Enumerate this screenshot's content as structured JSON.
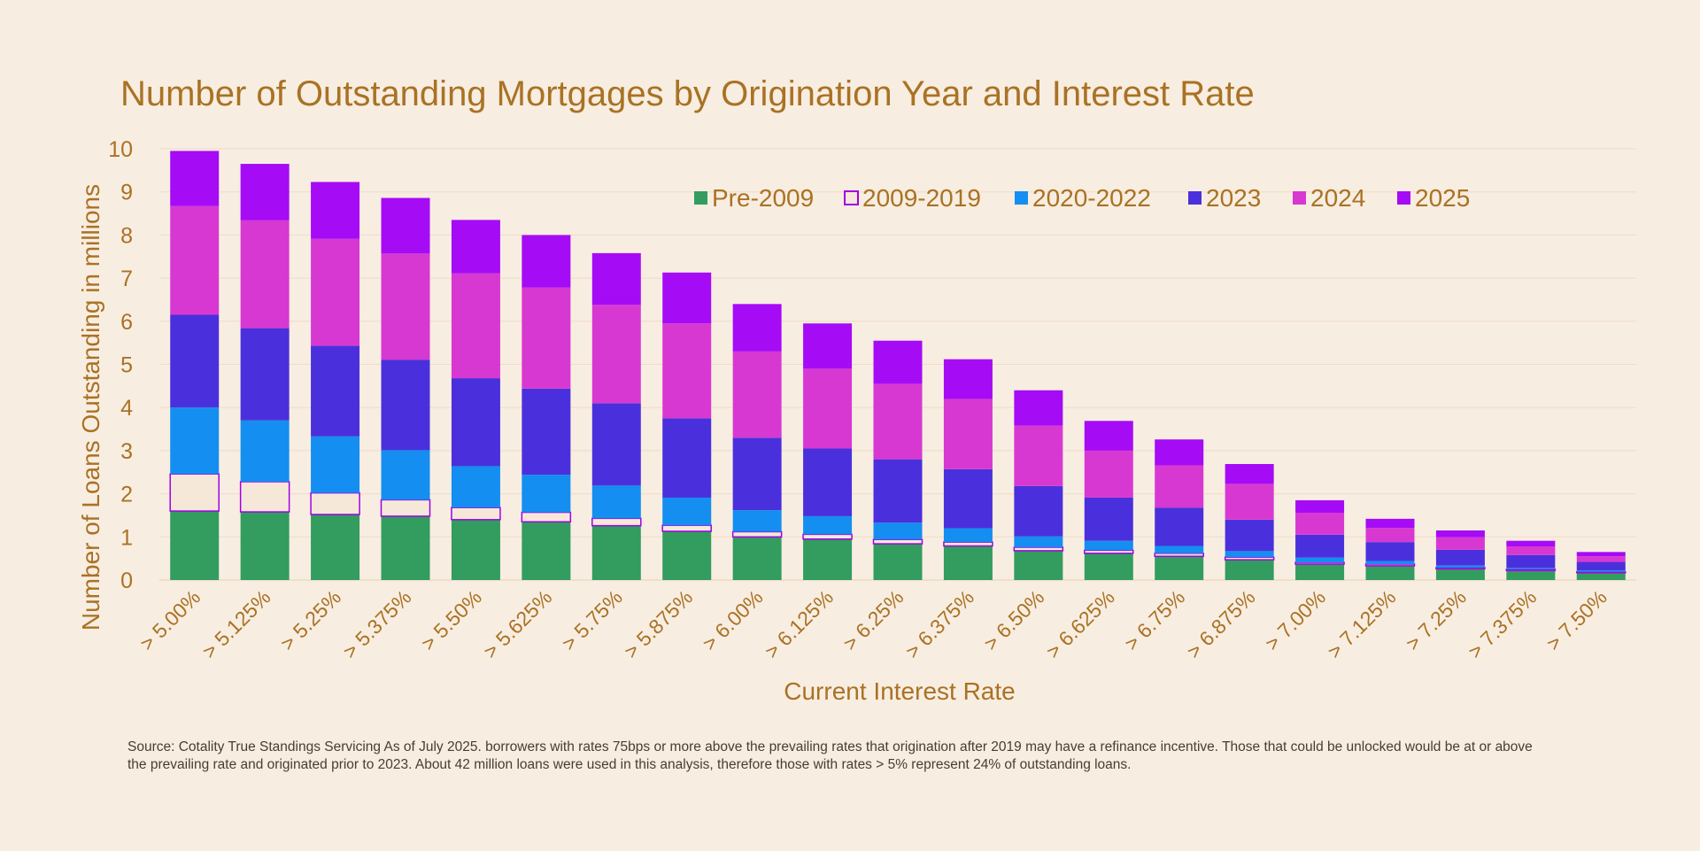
{
  "chart_data": {
    "type": "bar",
    "stacked": true,
    "title": "Number of Outstanding Mortgages by Origination Year and Interest Rate",
    "xlabel": "Current Interest Rate",
    "ylabel": "Number of Loans Outstanding in millions",
    "ylim": [
      0,
      10
    ],
    "yticks": [
      "0",
      "1",
      "2",
      "3",
      "4",
      "5",
      "6",
      "7",
      "8",
      "9",
      "10"
    ],
    "grid": true,
    "legend_position": "top-right",
    "categories": [
      "> 5.00%",
      "> 5.125%",
      "> 5.25%",
      "> 5.375%",
      "> 5.50%",
      "> 5.625%",
      "> 5.75%",
      "> 5.875%",
      "> 6.00%",
      "> 6.125%",
      "> 6.25%",
      "> 6.375%",
      "> 6.50%",
      "> 6.625%",
      "> 6.75%",
      "> 6.875%",
      "> 7.00%",
      "> 7.125%",
      "> 7.25%",
      "> 7.375%",
      "> 7.50%"
    ],
    "series": [
      {
        "name": "Pre-2009",
        "color": "#339c5f",
        "values": [
          1.6,
          1.58,
          1.52,
          1.48,
          1.4,
          1.35,
          1.26,
          1.13,
          1.0,
          0.95,
          0.84,
          0.79,
          0.68,
          0.62,
          0.55,
          0.47,
          0.37,
          0.33,
          0.26,
          0.22,
          0.17
        ]
      },
      {
        "name": "2009-2019",
        "color": "#f6e8d8",
        "outline": "#a100e6",
        "values": [
          0.86,
          0.7,
          0.5,
          0.38,
          0.28,
          0.22,
          0.17,
          0.14,
          0.12,
          0.11,
          0.1,
          0.09,
          0.08,
          0.07,
          0.07,
          0.06,
          0.04,
          0.04,
          0.03,
          0.03,
          0.02
        ]
      },
      {
        "name": "2020-2022",
        "color": "#148ef0",
        "values": [
          1.54,
          1.42,
          1.31,
          1.15,
          0.96,
          0.87,
          0.76,
          0.64,
          0.5,
          0.42,
          0.39,
          0.32,
          0.25,
          0.22,
          0.17,
          0.14,
          0.11,
          0.07,
          0.05,
          0.03,
          0.03
        ]
      },
      {
        "name": "2023",
        "color": "#4a30dc",
        "values": [
          2.15,
          2.14,
          2.1,
          2.1,
          2.04,
          2.0,
          1.91,
          1.84,
          1.68,
          1.57,
          1.47,
          1.37,
          1.17,
          1.0,
          0.89,
          0.73,
          0.53,
          0.44,
          0.36,
          0.3,
          0.2
        ]
      },
      {
        "name": "2024",
        "color": "#d838d2",
        "values": [
          2.52,
          2.5,
          2.48,
          2.46,
          2.43,
          2.34,
          2.28,
          2.2,
          2.0,
          1.85,
          1.75,
          1.63,
          1.4,
          1.09,
          0.98,
          0.83,
          0.51,
          0.33,
          0.29,
          0.2,
          0.13
        ]
      },
      {
        "name": "2025",
        "color": "#a60bf5",
        "values": [
          1.28,
          1.31,
          1.32,
          1.29,
          1.24,
          1.22,
          1.2,
          1.18,
          1.1,
          1.05,
          1.0,
          0.92,
          0.82,
          0.69,
          0.6,
          0.46,
          0.29,
          0.21,
          0.16,
          0.13,
          0.1
        ]
      }
    ]
  },
  "footnote": "Source: Cotality True Standings Servicing As of July 2025. borrowers with rates 75bps or more above the prevailing rates that origination after 2019 may have a refinance incentive. Those that could be unlocked would be at or above the prevailing rate and originated prior to 2023. About 42 million loans were used in this analysis, therefore those with rates > 5% represent 24% of outstanding loans."
}
